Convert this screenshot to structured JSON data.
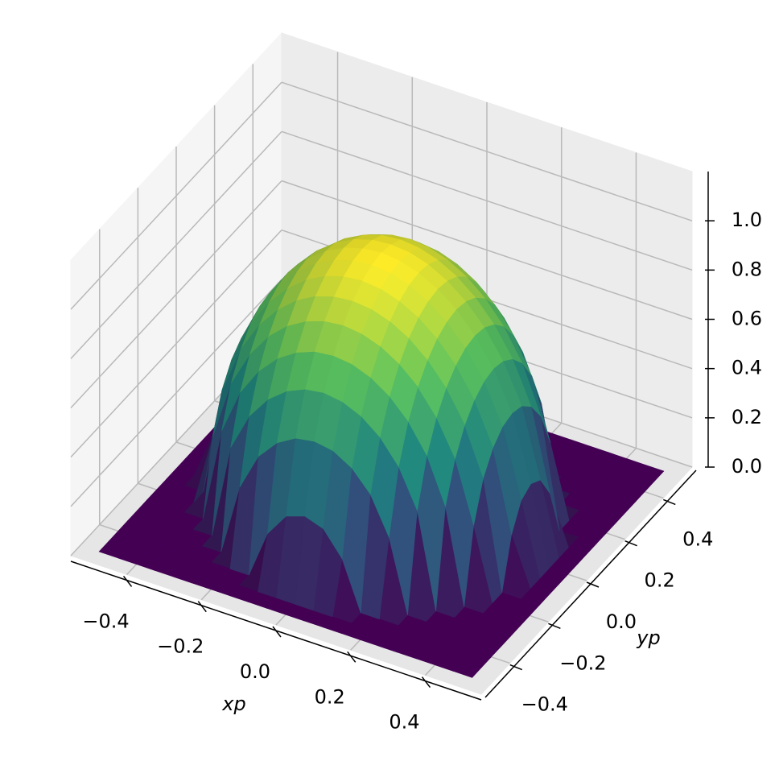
{
  "chart_data": {
    "type": "surface",
    "x": [
      -0.5,
      -0.45,
      -0.4,
      -0.35,
      -0.3,
      -0.25,
      -0.2,
      -0.15,
      -0.1,
      -0.05,
      0,
      0.05,
      0.1,
      0.15,
      0.2,
      0.25,
      0.3,
      0.35,
      0.4,
      0.45,
      0.5
    ],
    "y": [
      -0.5,
      -0.45,
      -0.4,
      -0.35,
      -0.3,
      -0.25,
      -0.2,
      -0.15,
      -0.1,
      -0.05,
      0,
      0.05,
      0.1,
      0.15,
      0.2,
      0.25,
      0.3,
      0.35,
      0.4,
      0.45,
      0.5
    ],
    "z": [
      [
        0,
        0,
        0,
        0,
        0,
        0,
        0,
        0,
        0,
        0,
        0,
        0,
        0,
        0,
        0,
        0,
        0,
        0,
        0,
        0,
        0
      ],
      [
        0,
        0,
        0,
        0,
        0,
        0,
        0,
        0,
        0,
        0,
        0,
        0,
        0,
        0,
        0,
        0,
        0,
        0,
        0,
        0,
        0
      ],
      [
        0,
        0,
        0,
        0,
        0,
        0,
        0,
        0,
        0.194,
        0.29,
        0.316,
        0.29,
        0.194,
        0,
        0,
        0,
        0,
        0,
        0,
        0,
        0
      ],
      [
        0,
        0,
        0,
        0,
        0,
        0,
        0.29,
        0.44,
        0.521,
        0.565,
        0.578,
        0.565,
        0.521,
        0.44,
        0.29,
        0,
        0,
        0,
        0,
        0,
        0
      ],
      [
        0,
        0,
        0,
        0,
        0,
        0.383,
        0.536,
        0.63,
        0.689,
        0.722,
        0.733,
        0.722,
        0.689,
        0.63,
        0.536,
        0.383,
        0,
        0,
        0,
        0,
        0
      ],
      [
        0,
        0,
        0,
        0,
        0.383,
        0.565,
        0.678,
        0.754,
        0.804,
        0.833,
        0.842,
        0.833,
        0.804,
        0.754,
        0.678,
        0.565,
        0.383,
        0,
        0,
        0,
        0
      ],
      [
        0,
        0,
        0,
        0.29,
        0.536,
        0.678,
        0.775,
        0.842,
        0.887,
        0.913,
        0.922,
        0.913,
        0.887,
        0.842,
        0.775,
        0.678,
        0.536,
        0.29,
        0,
        0,
        0
      ],
      [
        0,
        0,
        0,
        0.44,
        0.63,
        0.754,
        0.842,
        0.905,
        0.947,
        0.971,
        0.979,
        0.971,
        0.947,
        0.905,
        0.842,
        0.754,
        0.63,
        0.44,
        0,
        0,
        0
      ],
      [
        0,
        0,
        0.194,
        0.521,
        0.689,
        0.804,
        0.887,
        0.947,
        0.987,
        1.011,
        1.019,
        1.011,
        0.987,
        0.947,
        0.887,
        0.804,
        0.689,
        0.521,
        0.194,
        0,
        0
      ],
      [
        0,
        0,
        0.29,
        0.565,
        0.722,
        0.833,
        0.913,
        0.971,
        1.011,
        1.034,
        1.041,
        1.034,
        1.011,
        0.971,
        0.913,
        0.833,
        0.722,
        0.565,
        0.29,
        0,
        0
      ],
      [
        0,
        0,
        0.316,
        0.578,
        0.733,
        0.842,
        0.922,
        0.979,
        1.019,
        1.041,
        1.05,
        1.041,
        1.019,
        0.979,
        0.922,
        0.842,
        0.733,
        0.578,
        0.316,
        0,
        0
      ],
      [
        0,
        0,
        0.29,
        0.565,
        0.722,
        0.833,
        0.913,
        0.971,
        1.011,
        1.034,
        1.041,
        1.034,
        1.011,
        0.971,
        0.913,
        0.833,
        0.722,
        0.565,
        0.29,
        0,
        0
      ],
      [
        0,
        0,
        0.194,
        0.521,
        0.689,
        0.804,
        0.887,
        0.947,
        0.987,
        1.011,
        1.019,
        1.011,
        0.987,
        0.947,
        0.887,
        0.804,
        0.689,
        0.521,
        0.194,
        0,
        0
      ],
      [
        0,
        0,
        0,
        0.44,
        0.63,
        0.754,
        0.842,
        0.905,
        0.947,
        0.971,
        0.979,
        0.971,
        0.947,
        0.905,
        0.842,
        0.754,
        0.63,
        0.44,
        0,
        0,
        0
      ],
      [
        0,
        0,
        0,
        0.29,
        0.536,
        0.678,
        0.775,
        0.842,
        0.887,
        0.913,
        0.922,
        0.913,
        0.887,
        0.842,
        0.775,
        0.678,
        0.536,
        0.29,
        0,
        0,
        0
      ],
      [
        0,
        0,
        0,
        0,
        0.383,
        0.565,
        0.678,
        0.754,
        0.804,
        0.833,
        0.842,
        0.833,
        0.804,
        0.754,
        0.678,
        0.565,
        0.383,
        0,
        0,
        0,
        0
      ],
      [
        0,
        0,
        0,
        0,
        0,
        0.383,
        0.536,
        0.63,
        0.689,
        0.722,
        0.733,
        0.722,
        0.689,
        0.63,
        0.536,
        0.383,
        0,
        0,
        0,
        0,
        0
      ],
      [
        0,
        0,
        0,
        0,
        0,
        0,
        0.29,
        0.44,
        0.521,
        0.565,
        0.578,
        0.565,
        0.521,
        0.44,
        0.29,
        0,
        0,
        0,
        0,
        0,
        0
      ],
      [
        0,
        0,
        0,
        0,
        0,
        0,
        0,
        0,
        0.194,
        0.29,
        0.316,
        0.29,
        0.194,
        0,
        0,
        0,
        0,
        0,
        0,
        0,
        0
      ],
      [
        0,
        0,
        0,
        0,
        0,
        0,
        0,
        0,
        0,
        0,
        0,
        0,
        0,
        0,
        0,
        0,
        0,
        0,
        0,
        0,
        0
      ],
      [
        0,
        0,
        0,
        0,
        0,
        0,
        0,
        0,
        0,
        0,
        0,
        0,
        0,
        0,
        0,
        0,
        0,
        0,
        0,
        0,
        0
      ]
    ],
    "colormap": "viridis",
    "xlim": [
      -0.55,
      0.55
    ],
    "ylim": [
      -0.55,
      0.55
    ],
    "zlim": [
      0,
      1.2
    ],
    "xticks": [
      {
        "value": -0.4,
        "label": "−0.4"
      },
      {
        "value": -0.2,
        "label": "−0.2"
      },
      {
        "value": 0,
        "label": "0.0"
      },
      {
        "value": 0.2,
        "label": "0.2"
      },
      {
        "value": 0.4,
        "label": "0.4"
      }
    ],
    "yticks": [
      {
        "value": -0.4,
        "label": "−0.4"
      },
      {
        "value": -0.2,
        "label": "−0.2"
      },
      {
        "value": 0,
        "label": "0.0"
      },
      {
        "value": 0.2,
        "label": "0.2"
      },
      {
        "value": 0.4,
        "label": "0.4"
      }
    ],
    "zticks": [
      {
        "value": 0,
        "label": "0.0"
      },
      {
        "value": 0.2,
        "label": "0.2"
      },
      {
        "value": 0.4,
        "label": "0.4"
      },
      {
        "value": 0.6,
        "label": "0.6"
      },
      {
        "value": 0.8,
        "label": "0.8"
      },
      {
        "value": 1,
        "label": "1.0"
      }
    ],
    "xlabel": "xp",
    "ylabel": "yp",
    "grid": true
  }
}
